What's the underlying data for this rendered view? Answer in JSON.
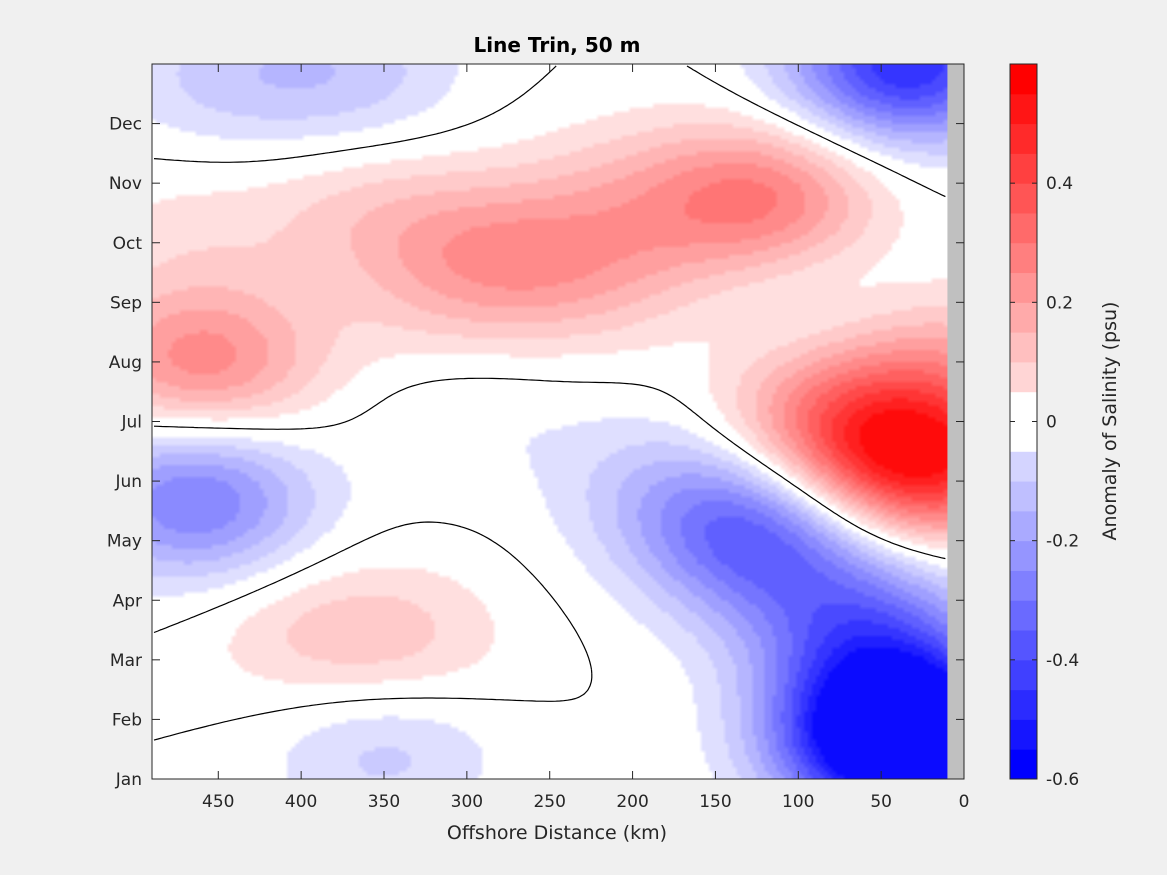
{
  "chart_data": {
    "type": "heatmap",
    "title": "Line Trin, 50 m",
    "xlabel": "Offshore Distance (km)",
    "ylabel": "",
    "colorbar_label": "Anomaly of Salinity (psu)",
    "xlim": [
      490,
      0
    ],
    "x_reversed": true,
    "x_ticks": [
      450,
      400,
      350,
      300,
      250,
      200,
      150,
      100,
      50,
      0
    ],
    "y_ticks": [
      "Jan",
      "Feb",
      "Mar",
      "Apr",
      "May",
      "Jun",
      "Jul",
      "Aug",
      "Sep",
      "Oct",
      "Nov",
      "Dec"
    ],
    "y_range_months": [
      1,
      13
    ],
    "data_x_limit_km": 10,
    "color_range": [
      -0.6,
      0.6
    ],
    "colorbar_ticks": [
      "0.4",
      "0.2",
      "0",
      "-0.2",
      "-0.4",
      "-0.6"
    ],
    "colorbar_tick_values": [
      0.4,
      0.2,
      0,
      -0.2,
      -0.4,
      -0.6
    ],
    "contour_level_step": 0.05,
    "zero_contour_drawn": true,
    "no_data_color": "#c0c0c0",
    "colormap": {
      "negative": "#0000ff",
      "zero": "#ffffff",
      "positive": "#ff0000"
    },
    "features": [
      {
        "name": "Strong positive core",
        "x_km": 25,
        "month": 6.3,
        "value": 0.5
      },
      {
        "name": "Strong negative core",
        "x_km": 35,
        "month": 1.5,
        "value": -0.55
      },
      {
        "name": "Negative winter core (Dec)",
        "x_km": 35,
        "month": 13.0,
        "value": -0.5
      },
      {
        "name": "Positive fall core",
        "x_km": 120,
        "month": 10.7,
        "value": 0.3
      },
      {
        "name": "Positive Aug core",
        "x_km": 460,
        "month": 8.0,
        "value": 0.28
      },
      {
        "name": "Negative May core",
        "x_km": 460,
        "month": 5.5,
        "value": -0.2
      },
      {
        "name": "Negative spring region",
        "x_km": 130,
        "month": 5.3,
        "value": -0.2
      },
      {
        "name": "Positive Oct core",
        "x_km": 285,
        "month": 9.8,
        "value": 0.18
      }
    ]
  }
}
